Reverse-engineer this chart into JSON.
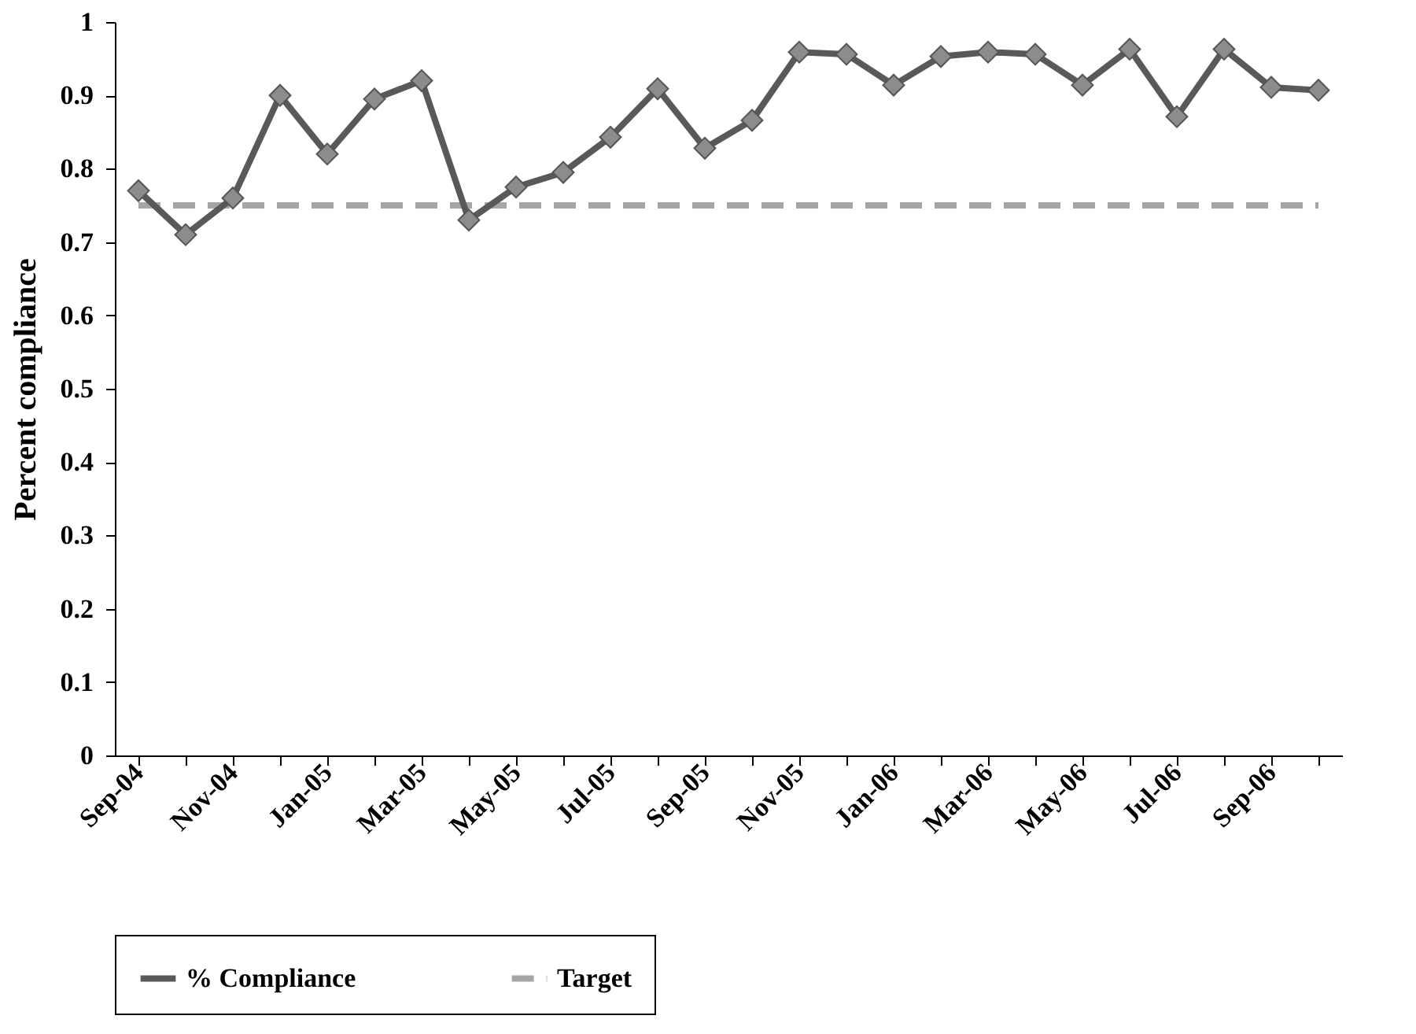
{
  "chart_data": {
    "type": "line",
    "ylabel": "Percent compliance",
    "categories": [
      "Sep-04",
      null,
      "Nov-04",
      null,
      "Jan-05",
      null,
      "Mar-05",
      null,
      "May-05",
      null,
      "Jul-05",
      null,
      "Sep-05",
      null,
      "Nov-05",
      null,
      "Jan-06",
      null,
      "Mar-06",
      null,
      "May-06",
      null,
      "Jul-06",
      null,
      "Sep-06",
      null
    ],
    "series": [
      {
        "name": "% Compliance",
        "color": "#595959",
        "values": [
          0.77,
          0.71,
          0.76,
          0.9,
          0.82,
          0.895,
          0.92,
          0.73,
          0.775,
          0.795,
          0.843,
          0.909,
          0.828,
          0.866,
          0.959,
          0.956,
          0.914,
          0.953,
          0.959,
          0.956,
          0.914,
          0.963,
          0.871,
          0.963,
          0.911,
          0.907
        ]
      }
    ],
    "ref_lines": [
      {
        "axis": "y",
        "value": 0.75,
        "label": "Target",
        "color": "#a6a6a6",
        "line_style": "dashed"
      }
    ],
    "ylim": [
      0,
      1
    ],
    "yticks": [
      0,
      0.1,
      0.2,
      0.3,
      0.4,
      0.5,
      0.6,
      0.7,
      0.8,
      0.9,
      1
    ],
    "grid": false,
    "legend": "bottom",
    "marker": "diamond",
    "line_style": "solid"
  }
}
